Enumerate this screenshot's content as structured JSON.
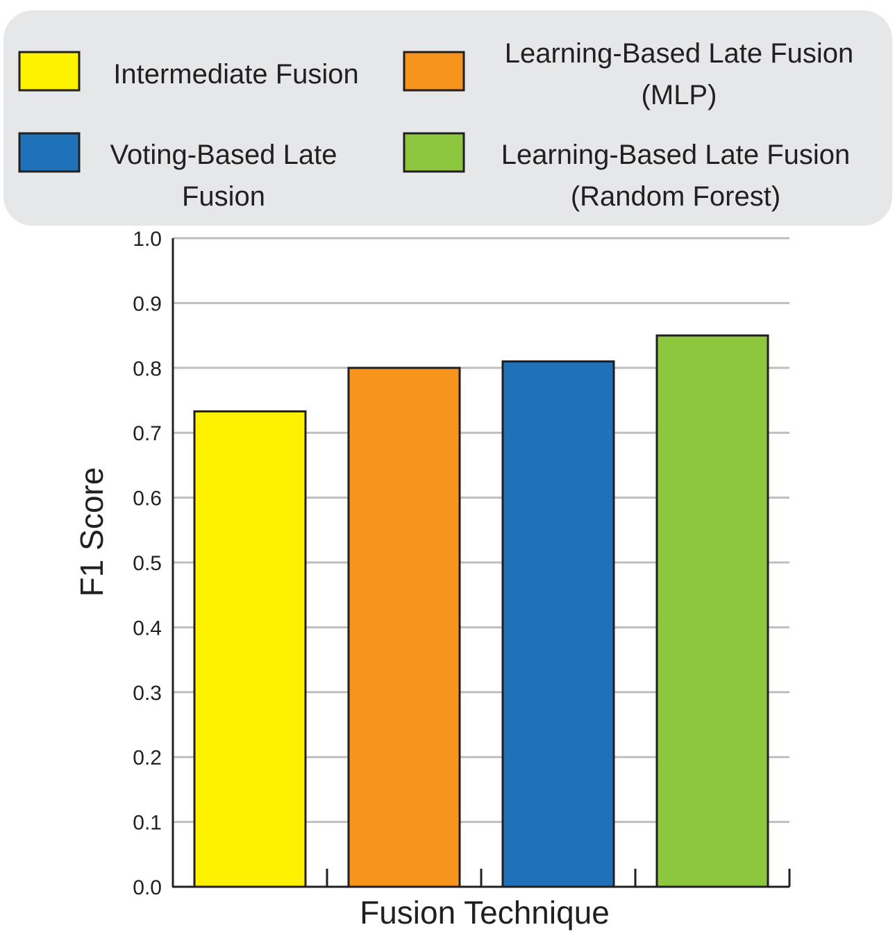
{
  "chart_data": {
    "type": "bar",
    "xlabel": "Fusion Technique",
    "ylabel": "F1 Score",
    "ylim": [
      0,
      1.0
    ],
    "y_ticks": [
      "0.0",
      "0.1",
      "0.2",
      "0.3",
      "0.4",
      "0.5",
      "0.6",
      "0.7",
      "0.8",
      "0.9",
      "1.0"
    ],
    "grid": true,
    "legend_position": "top",
    "categories": [
      "Intermediate Fusion",
      "Learning-Based Late Fusion (MLP)",
      "Voting-Based Late Fusion",
      "Learning-Based Late Fusion (Random Forest)"
    ],
    "values": [
      0.733,
      0.8,
      0.81,
      0.85
    ],
    "colors": [
      "#fff200",
      "#f7941d",
      "#1f72b8",
      "#8dc63f"
    ],
    "legend": [
      {
        "lines": [
          "Intermediate Fusion"
        ],
        "color": "#fff200"
      },
      {
        "lines": [
          "Learning-Based Late Fusion",
          "(MLP)"
        ],
        "color": "#f7941d"
      },
      {
        "lines": [
          "Voting-Based Late",
          "Fusion"
        ],
        "color": "#1f72b8"
      },
      {
        "lines": [
          "Learning-Based Late Fusion",
          "(Random Forest)"
        ],
        "color": "#8dc63f"
      }
    ]
  }
}
